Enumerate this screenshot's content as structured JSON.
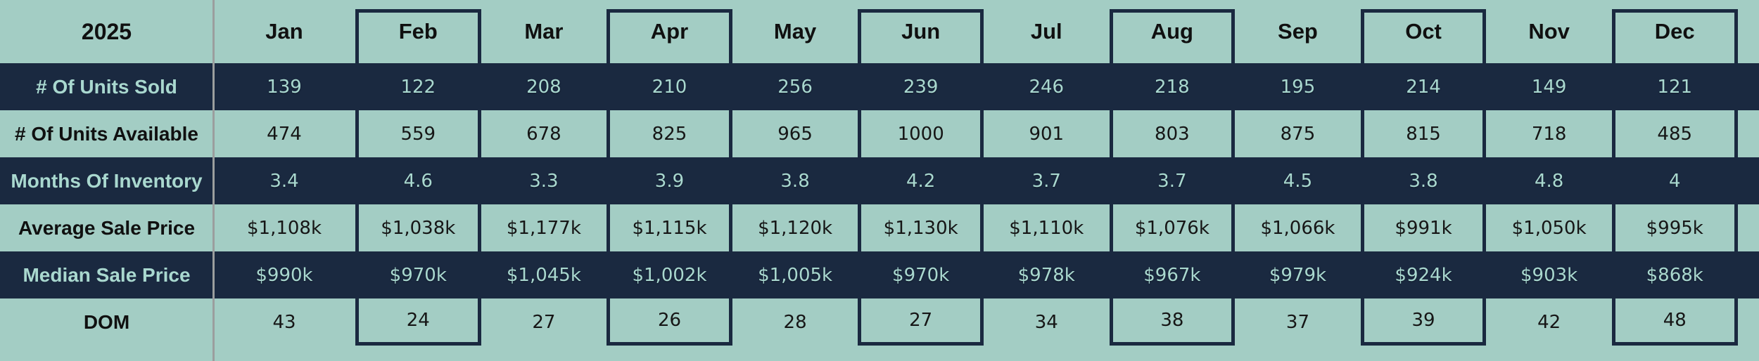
{
  "table": {
    "year": "2025",
    "months": [
      "Jan",
      "Feb",
      "Mar",
      "Apr",
      "May",
      "Jun",
      "Jul",
      "Aug",
      "Sep",
      "Oct",
      "Nov",
      "Dec"
    ],
    "rows": [
      {
        "key": "units-sold",
        "label": "# Of Units Sold",
        "theme": "dark",
        "values": [
          "139",
          "122",
          "208",
          "210",
          "256",
          "239",
          "246",
          "218",
          "195",
          "214",
          "149",
          "121"
        ]
      },
      {
        "key": "units-available",
        "label": "# Of Units Available",
        "theme": "light",
        "values": [
          "474",
          "559",
          "678",
          "825",
          "965",
          "1000",
          "901",
          "803",
          "875",
          "815",
          "718",
          "485"
        ]
      },
      {
        "key": "months-of-inventory",
        "label": "Months Of Inventory",
        "theme": "dark",
        "values": [
          "3.4",
          "4.6",
          "3.3",
          "3.9",
          "3.8",
          "4.2",
          "3.7",
          "3.7",
          "4.5",
          "3.8",
          "4.8",
          "4"
        ]
      },
      {
        "key": "average-sale-price",
        "label": "Average Sale Price",
        "theme": "light",
        "values": [
          "$1,108k",
          "$1,038k",
          "$1,177k",
          "$1,115k",
          "$1,120k",
          "$1,130k",
          "$1,110k",
          "$1,076k",
          "$1,066k",
          "$991k",
          "$1,050k",
          "$995k"
        ]
      },
      {
        "key": "median-sale-price",
        "label": "Median Sale Price",
        "theme": "dark",
        "values": [
          "$990k",
          "$970k",
          "$1,045k",
          "$1,002k",
          "$1,005k",
          "$970k",
          "$978k",
          "$967k",
          "$979k",
          "$924k",
          "$903k",
          "$868k"
        ]
      },
      {
        "key": "dom",
        "label": "DOM",
        "theme": "light",
        "values": [
          "43",
          "24",
          "27",
          "26",
          "28",
          "27",
          "34",
          "38",
          "37",
          "39",
          "42",
          "48"
        ]
      }
    ]
  },
  "colors": {
    "background_sage": "#a3cdc4",
    "band_navy": "#1a2940",
    "pale_text_on_navy": "#a9d8cf",
    "dark_text": "#101010",
    "divider_gray": "#9b9e9e"
  },
  "chart_data": {
    "type": "table",
    "title": "2025",
    "categories": [
      "Jan",
      "Feb",
      "Mar",
      "Apr",
      "May",
      "Jun",
      "Jul",
      "Aug",
      "Sep",
      "Oct",
      "Nov",
      "Dec"
    ],
    "series": [
      {
        "name": "# Of Units Sold",
        "values": [
          139,
          122,
          208,
          210,
          256,
          239,
          246,
          218,
          195,
          214,
          149,
          121
        ]
      },
      {
        "name": "# Of Units Available",
        "values": [
          474,
          559,
          678,
          825,
          965,
          1000,
          901,
          803,
          875,
          815,
          718,
          485
        ]
      },
      {
        "name": "Months Of Inventory",
        "values": [
          3.4,
          4.6,
          3.3,
          3.9,
          3.8,
          4.2,
          3.7,
          3.7,
          4.5,
          3.8,
          4.8,
          4
        ]
      },
      {
        "name": "Average Sale Price ($k)",
        "values": [
          1108,
          1038,
          1177,
          1115,
          1120,
          1130,
          1110,
          1076,
          1066,
          991,
          1050,
          995
        ]
      },
      {
        "name": "Median Sale Price ($k)",
        "values": [
          990,
          970,
          1045,
          1002,
          1005,
          970,
          978,
          967,
          979,
          924,
          903,
          868
        ]
      },
      {
        "name": "DOM",
        "values": [
          43,
          24,
          27,
          26,
          28,
          27,
          34,
          38,
          37,
          39,
          42,
          48
        ]
      }
    ]
  }
}
